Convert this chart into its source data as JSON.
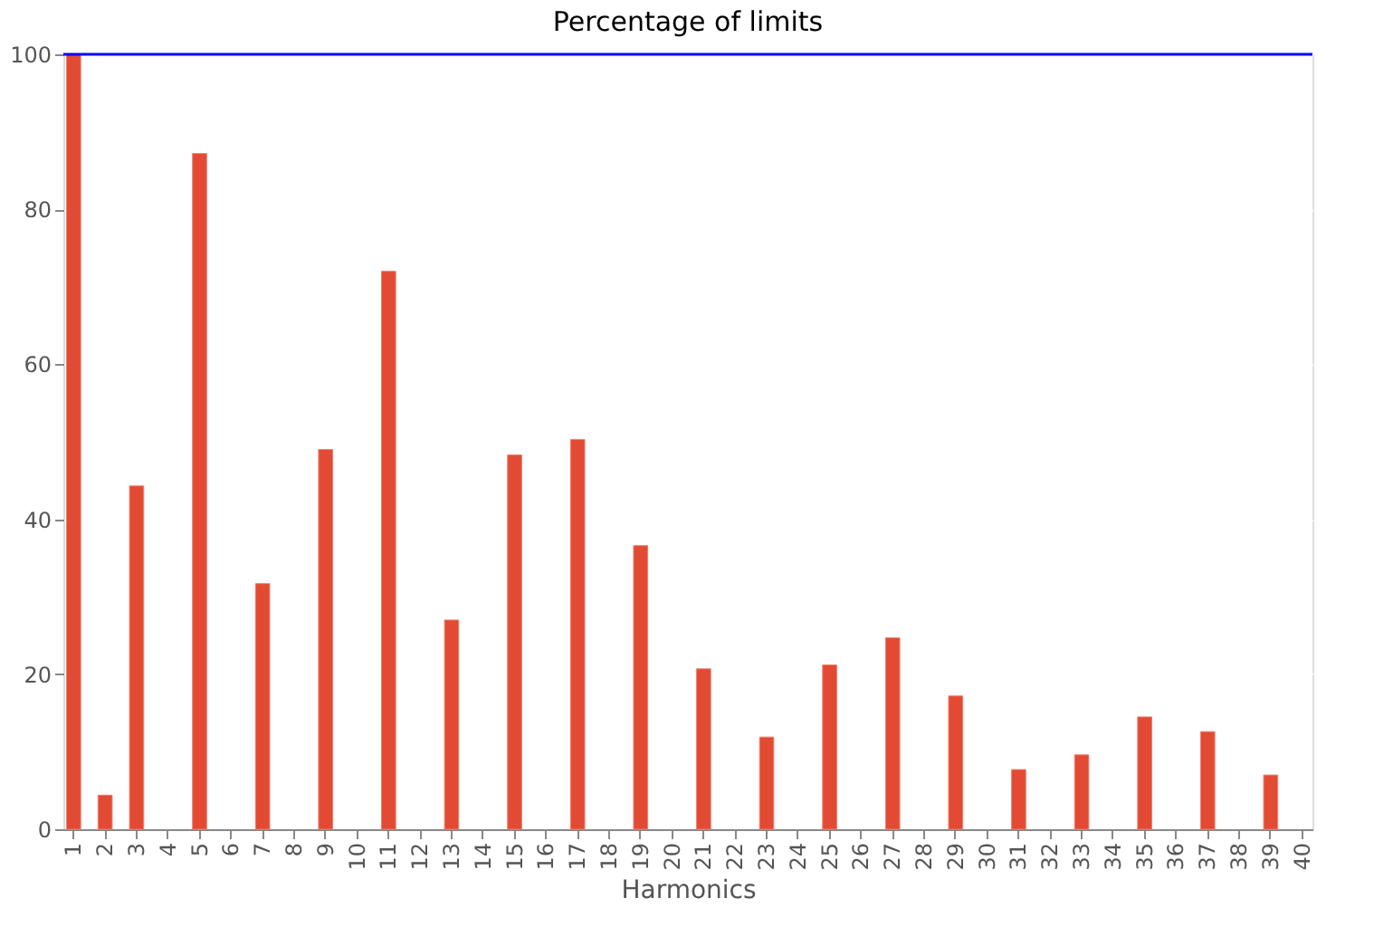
{
  "chart_data": {
    "type": "bar",
    "title": "Percentage of limits",
    "xlabel": "Harmonics",
    "categories": [
      "1",
      "2",
      "3",
      "4",
      "5",
      "6",
      "7",
      "8",
      "9",
      "10",
      "11",
      "12",
      "13",
      "14",
      "15",
      "16",
      "17",
      "18",
      "19",
      "20",
      "21",
      "22",
      "23",
      "24",
      "25",
      "26",
      "27",
      "28",
      "29",
      "30",
      "31",
      "32",
      "33",
      "34",
      "35",
      "36",
      "37",
      "38",
      "39",
      "40"
    ],
    "series": [
      {
        "color": "#e24a33",
        "values": [
          100,
          4.4,
          44.3,
          null,
          87.2,
          null,
          31.7,
          null,
          49,
          null,
          72,
          null,
          27,
          null,
          48.3,
          null,
          50.3,
          null,
          36.6,
          null,
          20.7,
          null,
          11.9,
          null,
          21.2,
          null,
          24.7,
          null,
          17.2,
          null,
          7.7,
          null,
          9.6,
          null,
          14.5,
          null,
          12.6,
          null,
          7.0,
          null
        ]
      }
    ],
    "ylim": [
      0,
      100
    ],
    "yticks": [
      0,
      20,
      40,
      60,
      80,
      100
    ],
    "grid": true,
    "ref_lines": [
      {
        "axis": "y",
        "value": 100,
        "color": "#0000ff"
      }
    ]
  }
}
